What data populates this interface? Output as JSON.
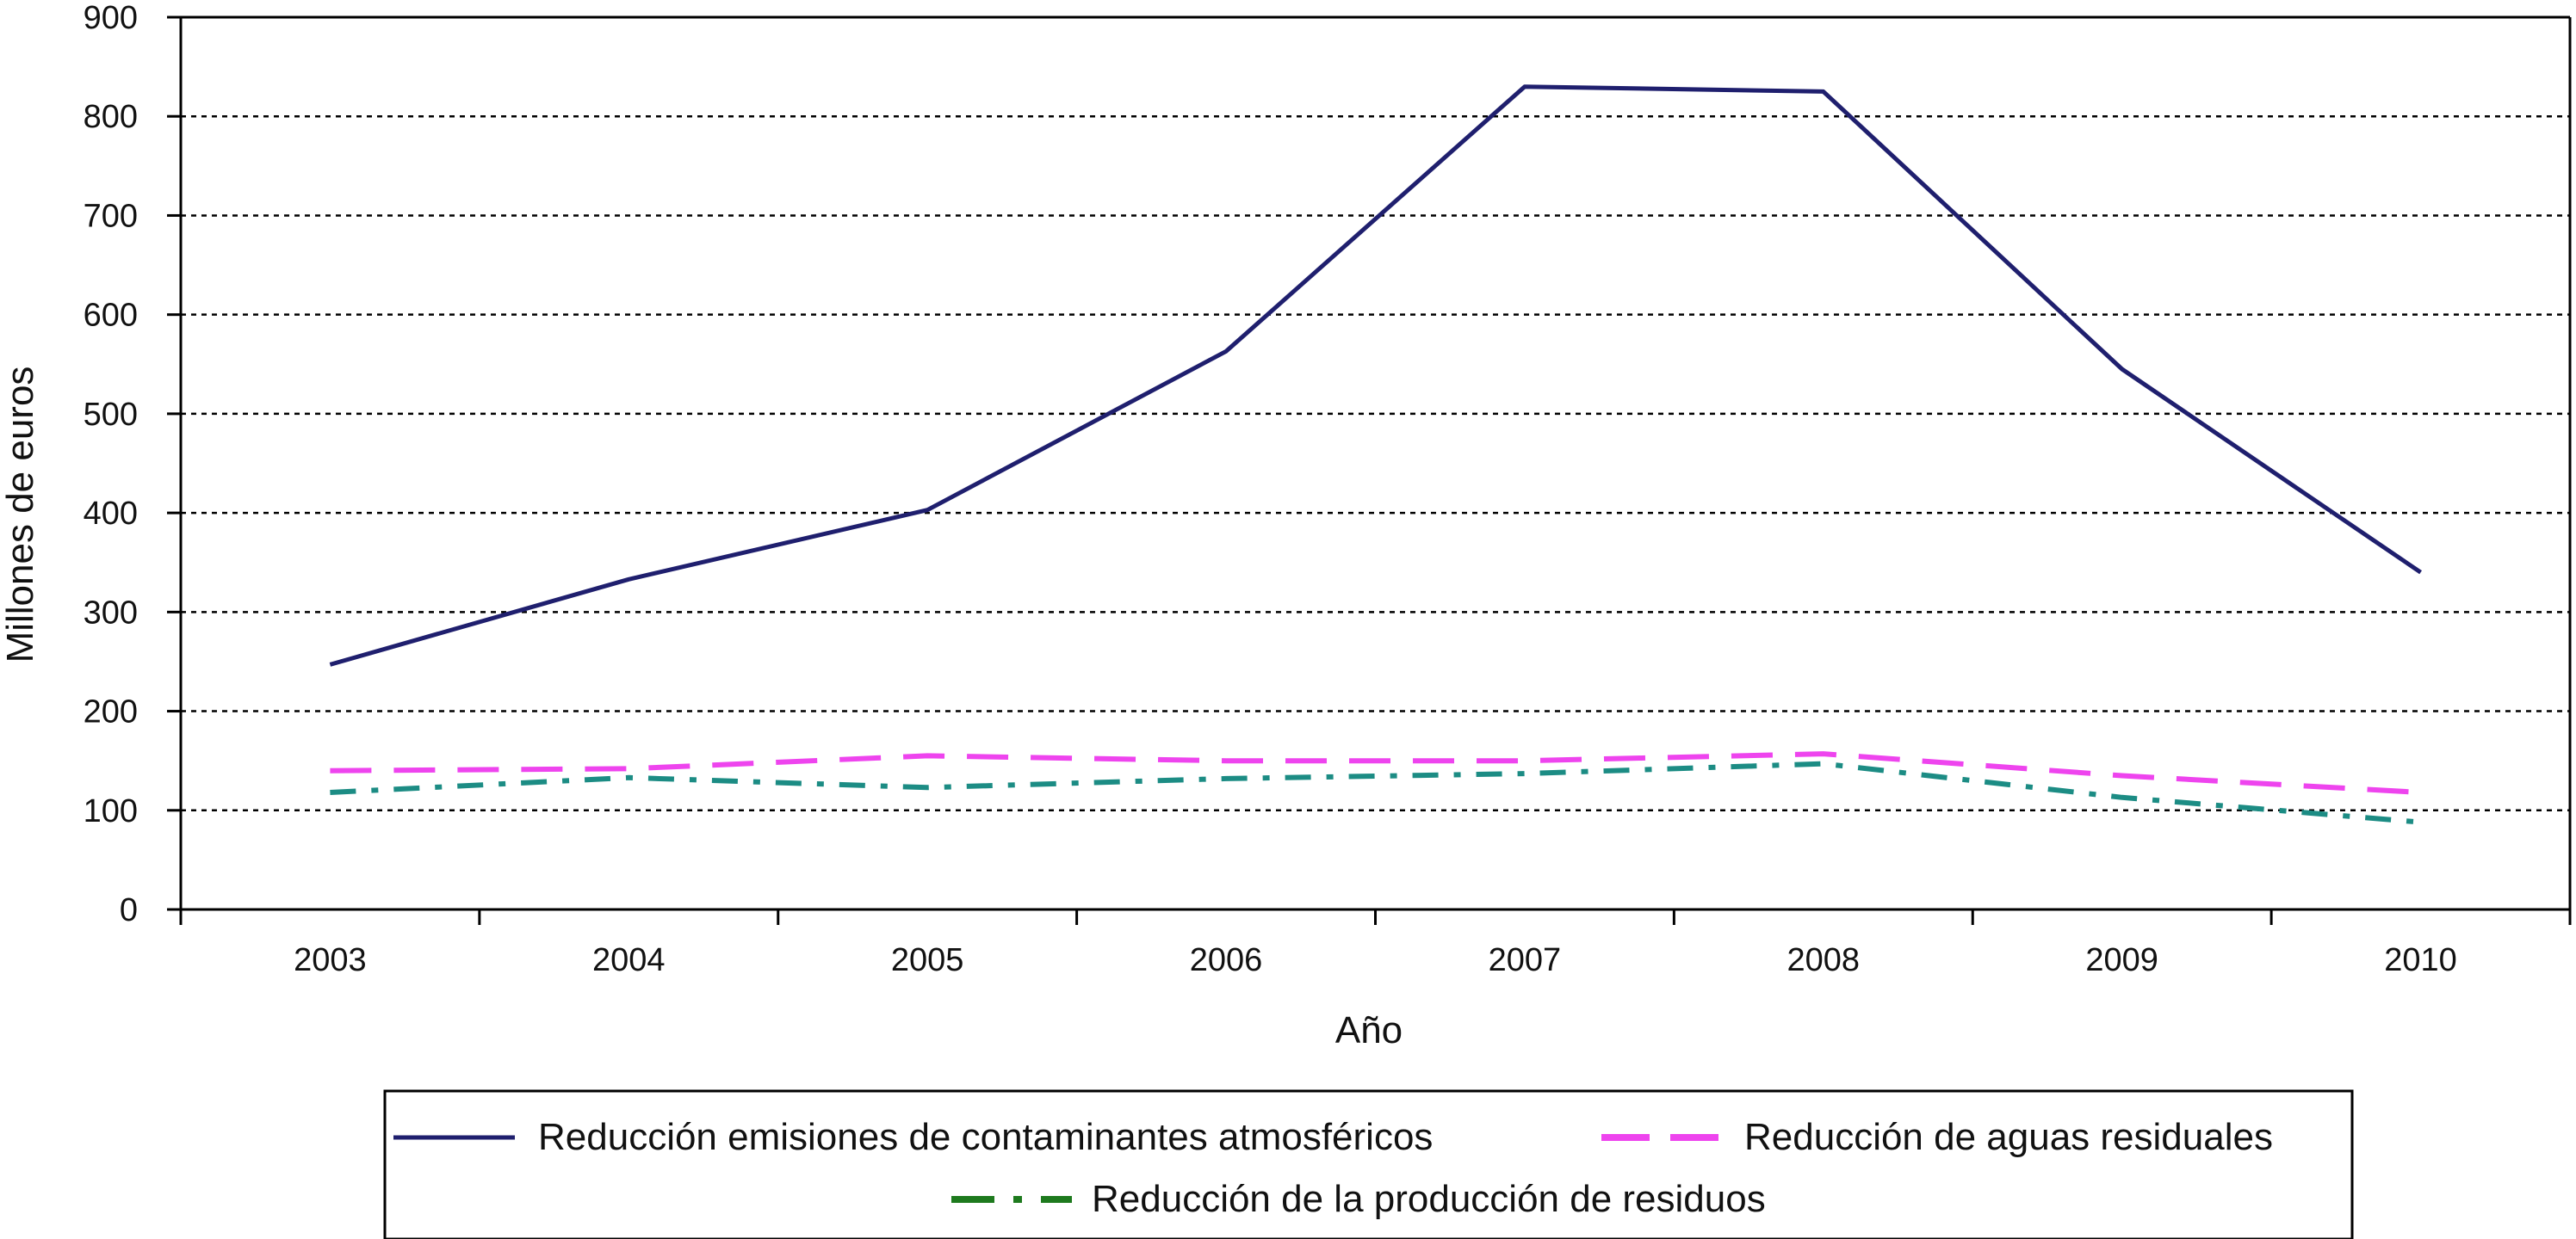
{
  "chart_data": {
    "type": "line",
    "title": "",
    "xlabel": "Año",
    "ylabel": "Millones de euros",
    "x": [
      "2003",
      "2004",
      "2005",
      "2006",
      "2007",
      "2008",
      "2009",
      "2010"
    ],
    "ylim": [
      0,
      900
    ],
    "yticks": [
      0,
      100,
      200,
      300,
      400,
      500,
      600,
      700,
      800,
      900
    ],
    "grid": true,
    "legend_position": "bottom",
    "series": [
      {
        "name": "Reducción emisiones de contaminantes atmosféricos",
        "values": [
          247,
          333,
          403,
          563,
          830,
          825,
          545,
          340
        ],
        "color": "#1f1f6e",
        "style": "solid"
      },
      {
        "name": "Reducción de aguas residuales",
        "values": [
          140,
          142,
          155,
          150,
          150,
          157,
          135,
          118
        ],
        "color": "#ee44ee",
        "style": "dashed"
      },
      {
        "name": "Reducción de la producción de residuos",
        "values": [
          118,
          133,
          123,
          132,
          137,
          147,
          113,
          88
        ],
        "color": "#1c8c84",
        "style": "dash-dot",
        "legend_color": "#1e7a1e"
      }
    ]
  }
}
